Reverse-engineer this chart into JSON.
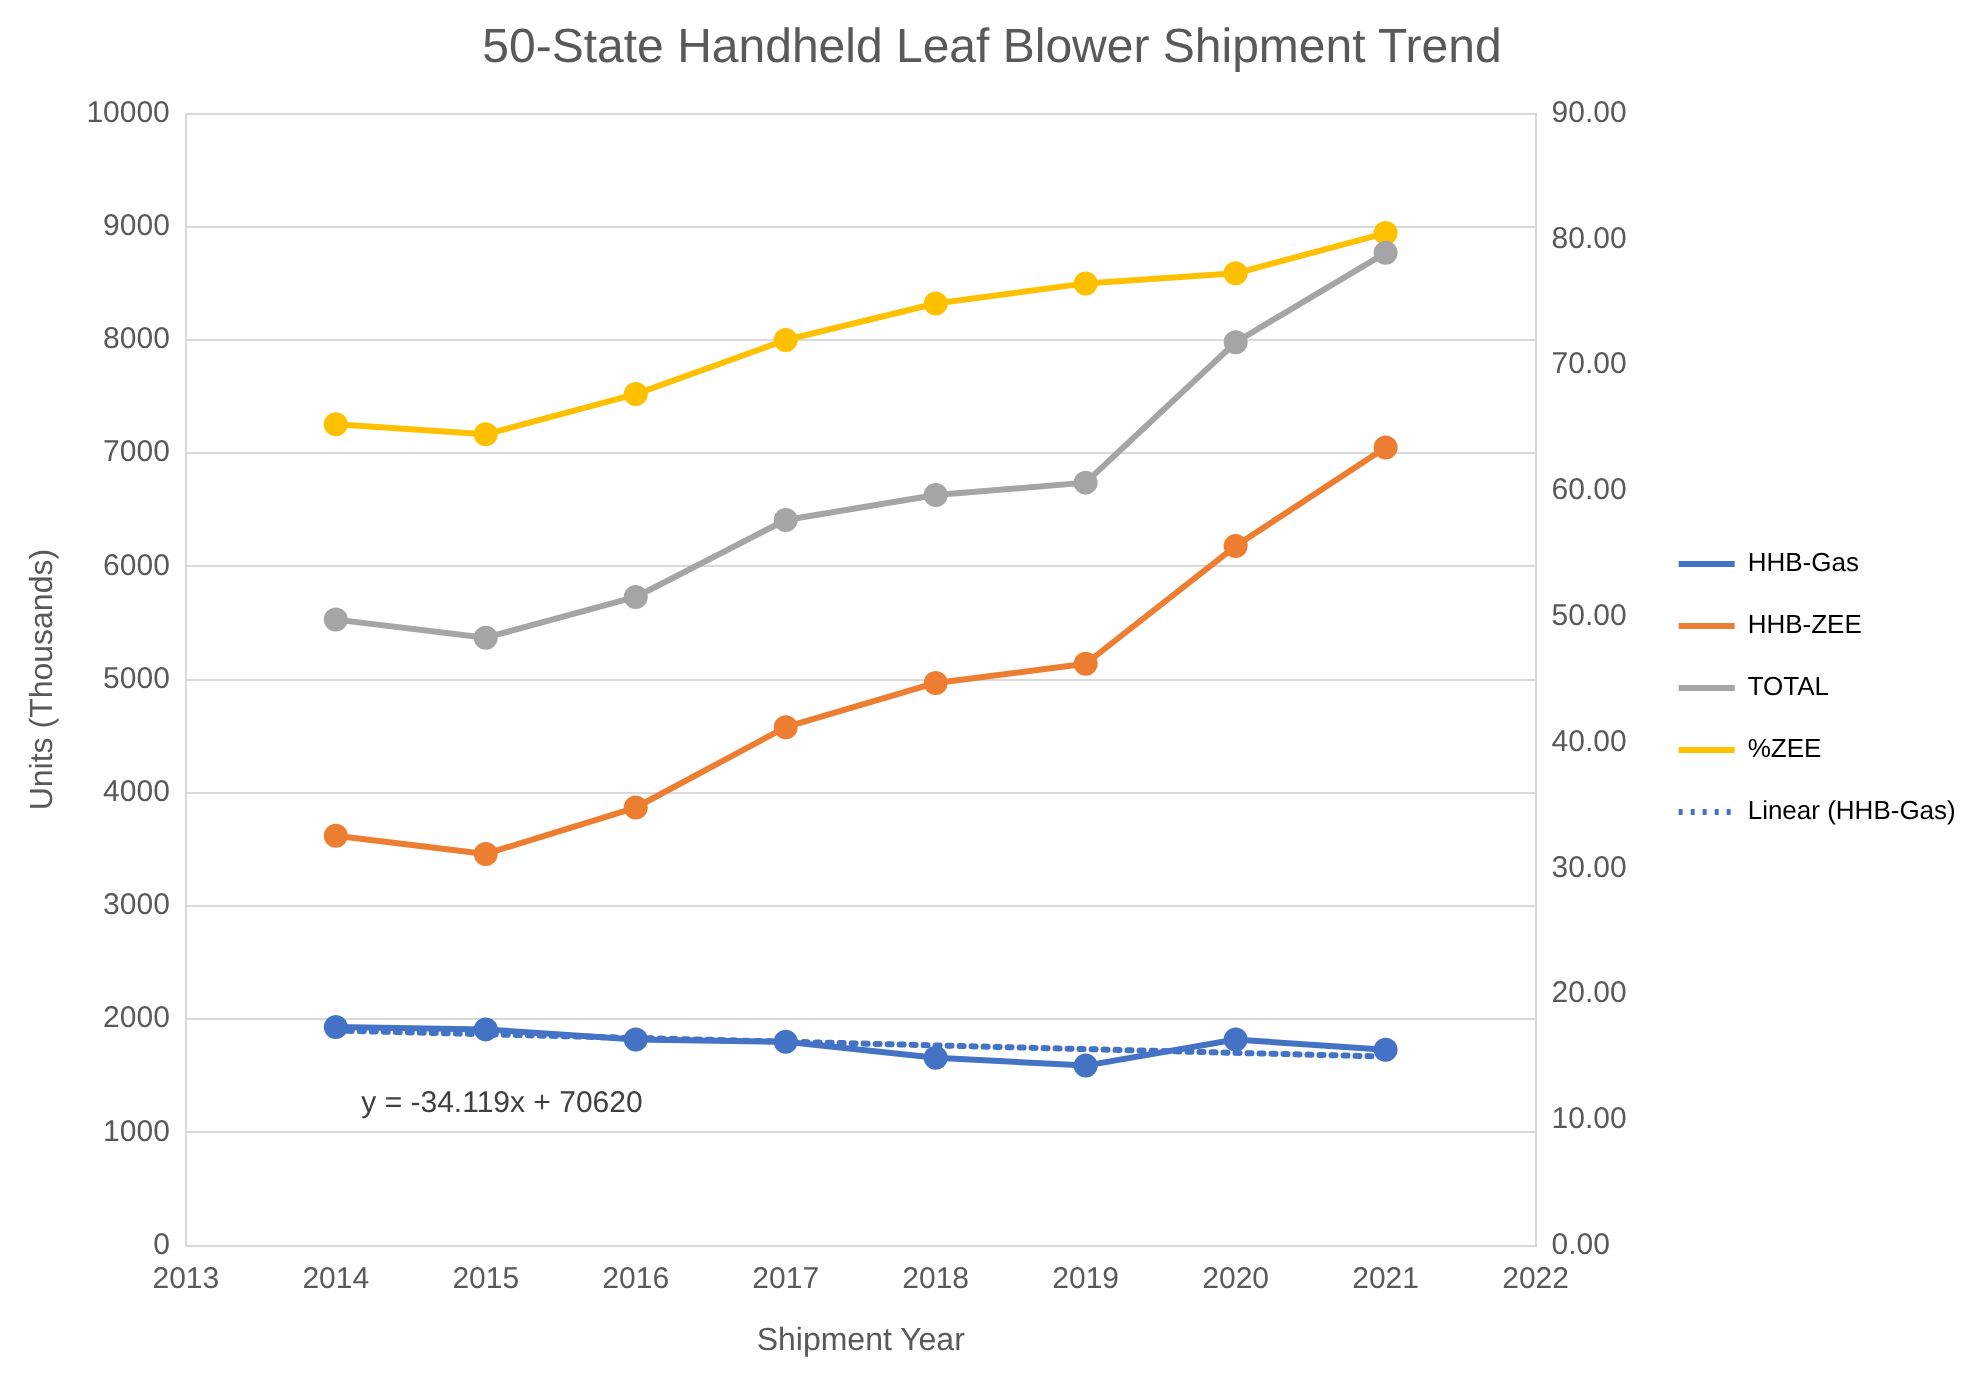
{
  "chart_data": {
    "type": "line",
    "title": "50-State Handheld Leaf Blower Shipment Trend",
    "xlabel": "Shipment Year",
    "ylabel": "Units (Thousands)",
    "x": [
      2014,
      2015,
      2016,
      2017,
      2018,
      2019,
      2020,
      2021
    ],
    "series": [
      {
        "name": "HHB-Gas",
        "color": "#4472c4",
        "values": [
          1930,
          1910,
          1820,
          1800,
          1660,
          1590,
          1820,
          1730
        ]
      },
      {
        "name": "HHB-ZEE",
        "color": "#ed7d31",
        "values": [
          3620,
          3460,
          3870,
          4580,
          4970,
          5140,
          6180,
          7050
        ]
      },
      {
        "name": "TOTAL",
        "color": "#a5a5a5",
        "values": [
          5530,
          5370,
          5730,
          6410,
          6630,
          6740,
          7980,
          8770
        ]
      },
      {
        "name": "%ZEE",
        "color": "#ffc000",
        "axis": "y2",
        "values": [
          65.3,
          64.5,
          67.7,
          72.0,
          74.9,
          76.5,
          77.3,
          80.5
        ]
      },
      {
        "name": "Linear (HHB-Gas)",
        "color": "#4472c4",
        "type": "line",
        "x": [
          2014,
          2021
        ],
        "values": [
          1900,
          1670
        ],
        "marker": "none",
        "line_style": "dotted"
      }
    ],
    "xlim": [
      2013,
      2022
    ],
    "xticks": [
      2013,
      2014,
      2015,
      2016,
      2017,
      2018,
      2019,
      2020,
      2021,
      2022
    ],
    "ylim": [
      0,
      10000
    ],
    "yticks": [
      0,
      1000,
      2000,
      3000,
      4000,
      5000,
      6000,
      7000,
      8000,
      9000,
      10000
    ],
    "y2lim": [
      0,
      90
    ],
    "y2ticks": [
      {
        "value": 0,
        "label": "0.00"
      },
      {
        "value": 10,
        "label": "10.00"
      },
      {
        "value": 20,
        "label": "20.00"
      },
      {
        "value": 30,
        "label": "30.00"
      },
      {
        "value": 40,
        "label": "40.00"
      },
      {
        "value": 50,
        "label": "50.00"
      },
      {
        "value": 60,
        "label": "60.00"
      },
      {
        "value": 70,
        "label": "70.00"
      },
      {
        "value": 80,
        "label": "80.00"
      },
      {
        "value": 90,
        "label": "90.00"
      }
    ],
    "annotations": [
      "y = -34.119x + 70620"
    ],
    "grid": "y",
    "legend": "right",
    "marker": "circle",
    "line_style": "solid"
  }
}
